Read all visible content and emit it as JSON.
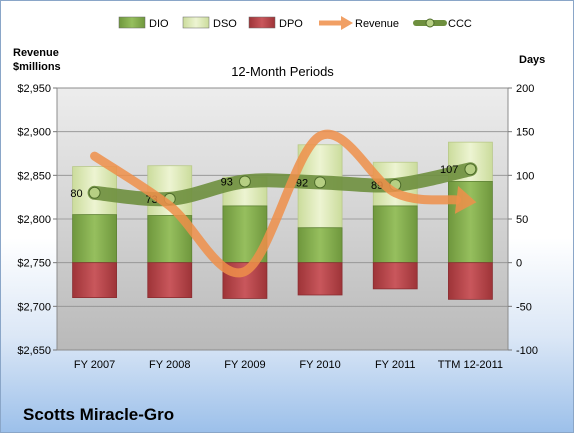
{
  "chart_data": {
    "type": "bar",
    "title": "12-Month Periods",
    "company": "Scotts Miracle-Gro",
    "categories": [
      "FY 2007",
      "FY 2008",
      "FY 2009",
      "FY 2010",
      "FY 2011",
      "TTM 12-2011"
    ],
    "left_axis": {
      "label_line1": "Revenue",
      "label_line2": "$millions",
      "ylim": [
        2650,
        2950
      ],
      "ticks": [
        "$2,650",
        "$2,700",
        "$2,750",
        "$2,800",
        "$2,850",
        "$2,900",
        "$2,950"
      ]
    },
    "right_axis": {
      "label": "Days",
      "ylim": [
        -100,
        200
      ],
      "ticks": [
        "-100",
        "-50",
        "0",
        "50",
        "100",
        "150",
        "200"
      ]
    },
    "legend": {
      "position": "top",
      "items": [
        "DIO",
        "DSO",
        "DPO",
        "Revenue",
        "CCC"
      ]
    },
    "grid": true,
    "series": [
      {
        "name": "DIO",
        "axis": "right",
        "kind": "stacked-bar",
        "values": [
          55,
          54,
          65,
          40,
          65,
          93
        ]
      },
      {
        "name": "DSO",
        "axis": "right",
        "kind": "stacked-bar",
        "values": [
          55,
          57,
          33,
          95,
          50,
          45
        ]
      },
      {
        "name": "DPO",
        "axis": "right",
        "kind": "stacked-bar",
        "values": [
          -40,
          -40,
          -41,
          -37,
          -30,
          -42
        ]
      },
      {
        "name": "Revenue",
        "axis": "left",
        "kind": "line",
        "values": [
          2872,
          2815,
          2740,
          2895,
          2830,
          2820
        ]
      },
      {
        "name": "CCC",
        "axis": "right",
        "kind": "line",
        "values": [
          80,
          73,
          93,
          92,
          89,
          107
        ],
        "data_labels": [
          "80",
          "73",
          "93",
          "92",
          "89",
          "107"
        ]
      }
    ],
    "colors": {
      "DIO": "#7da34a",
      "DSO": "#d6e4ae",
      "DPO": "#b4474b",
      "Revenue": "#ef8f4a",
      "CCC": "#6e8f3e"
    }
  }
}
